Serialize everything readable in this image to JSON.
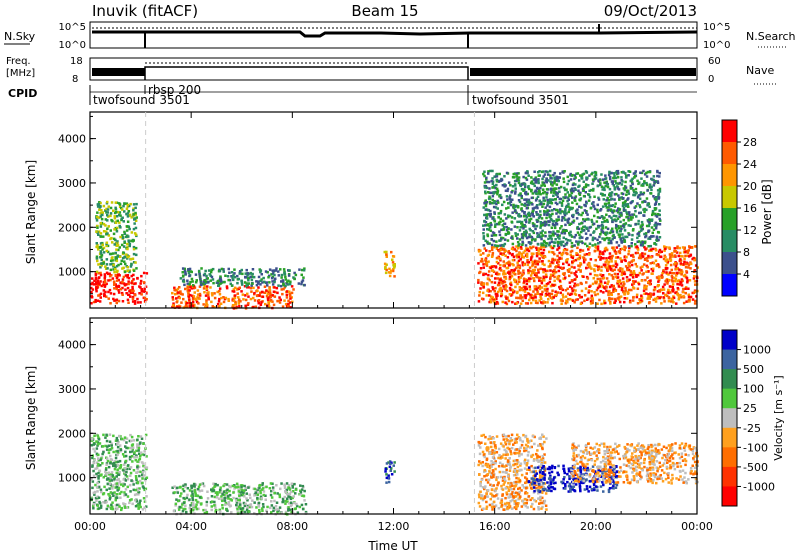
{
  "header": {
    "station": "Inuvik (fitACF)",
    "beam": "Beam 15",
    "date": "09/Oct/2013"
  },
  "param_panels": {
    "nsky_label": "N.Sky",
    "nsky_ticks": [
      "10^5",
      "10^0"
    ],
    "nsearch_label": "N.Search",
    "nsearch_ticks": [
      "10^5",
      "10^0"
    ],
    "freq_label_top": "Freq.",
    "freq_label_bottom": "[MHz]",
    "freq_ticks": [
      "18",
      "8"
    ],
    "nave_label": "Nave",
    "nave_ticks": [
      "60",
      "0"
    ],
    "cpid_label": "CPID",
    "cpid_segments": [
      "twofsound 3501",
      "rbsp 200",
      "twofsound 3501"
    ]
  },
  "chart_data": [
    {
      "type": "heatmap",
      "title": "",
      "ylabel": "Slant Range [km]",
      "yticks": [
        "1000",
        "2000",
        "3000",
        "4000"
      ],
      "ylim": [
        180,
        4600
      ],
      "xticks": [
        "00:00",
        "04:00",
        "08:00",
        "12:00",
        "16:00",
        "20:00",
        "00:00"
      ],
      "xlim_hours": [
        0,
        24
      ],
      "colorbar": {
        "label": "Power [dB]",
        "ticks": [
          "28",
          "24",
          "20",
          "16",
          "12",
          "8",
          "4"
        ],
        "colors": [
          "#ff0000",
          "#ff5a00",
          "#ff9600",
          "#c8c800",
          "#28a028",
          "#288c64",
          "#3c508c",
          "#0000ff"
        ]
      },
      "regions": [
        {
          "t0": 0.0,
          "t1": 2.2,
          "r0": 300,
          "r1": 1000,
          "level": 28
        },
        {
          "t0": 0.2,
          "t1": 1.8,
          "r0": 1000,
          "r1": 2600,
          "level": 14
        },
        {
          "t0": 3.2,
          "t1": 8.0,
          "r0": 200,
          "r1": 700,
          "level": 26
        },
        {
          "t0": 3.5,
          "t1": 8.5,
          "r0": 700,
          "r1": 1100,
          "level": 8
        },
        {
          "t0": 11.6,
          "t1": 12.0,
          "r0": 900,
          "r1": 1500,
          "level": 20
        },
        {
          "t0": 15.3,
          "t1": 24.0,
          "r0": 300,
          "r1": 1600,
          "level": 24
        },
        {
          "t0": 15.5,
          "t1": 22.5,
          "r0": 1600,
          "r1": 3300,
          "level": 10
        }
      ]
    },
    {
      "type": "heatmap",
      "title": "",
      "ylabel": "Slant Range [km]",
      "yticks": [
        "1000",
        "2000",
        "3000",
        "4000"
      ],
      "ylim": [
        180,
        4600
      ],
      "xticks": [
        "00:00",
        "04:00",
        "08:00",
        "12:00",
        "16:00",
        "20:00",
        "00:00"
      ],
      "xlim_hours": [
        0,
        24
      ],
      "xlabel": "Time UT",
      "colorbar": {
        "label": "Velocity [m s⁻¹]",
        "ticks": [
          "1000",
          "500",
          "100",
          "25",
          "-25",
          "-100",
          "-500",
          "-1000"
        ],
        "colors": [
          "#0000c8",
          "#3c64a0",
          "#328c50",
          "#50c83c",
          "#bebebe",
          "#ffa01e",
          "#ff6e00",
          "#ff3200",
          "#ff0000"
        ]
      },
      "regions": [
        {
          "t0": 0.0,
          "t1": 2.2,
          "r0": 300,
          "r1": 2000,
          "level": 50
        },
        {
          "t0": 3.2,
          "t1": 8.5,
          "r0": 200,
          "r1": 900,
          "level": 60
        },
        {
          "t0": 11.6,
          "t1": 12.0,
          "r0": 900,
          "r1": 1400,
          "level": 700
        },
        {
          "t0": 15.3,
          "t1": 18.0,
          "r0": 300,
          "r1": 2000,
          "level": -100
        },
        {
          "t0": 17.3,
          "t1": 20.8,
          "r0": 700,
          "r1": 1300,
          "level": 900
        },
        {
          "t0": 19.0,
          "t1": 24.0,
          "r0": 900,
          "r1": 1800,
          "level": -150
        }
      ]
    }
  ]
}
